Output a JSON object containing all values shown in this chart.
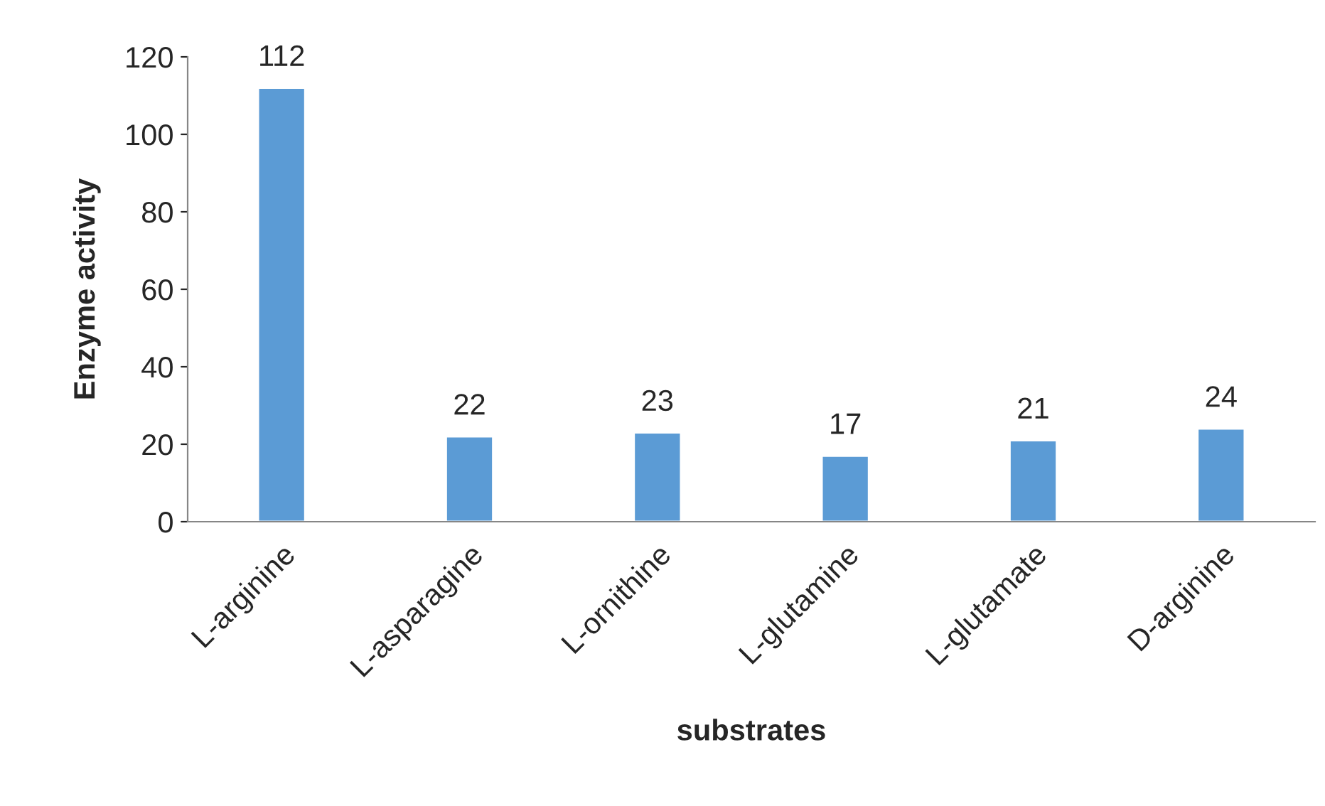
{
  "chart_data": {
    "type": "bar",
    "xlabel": "substrates",
    "ylabel": "Enzyme activity",
    "categories": [
      "L-arginine",
      "L-asparagine",
      "L-ornithine",
      "L-glutamine",
      "L-glutamate",
      "D-arginine"
    ],
    "values": [
      112,
      22,
      23,
      17,
      21,
      24
    ],
    "color": "#5b9bd5",
    "ylim": [
      0,
      120
    ],
    "yticks": [
      0,
      20,
      40,
      60,
      80,
      100,
      120
    ],
    "grid": false,
    "data_labels": true
  }
}
